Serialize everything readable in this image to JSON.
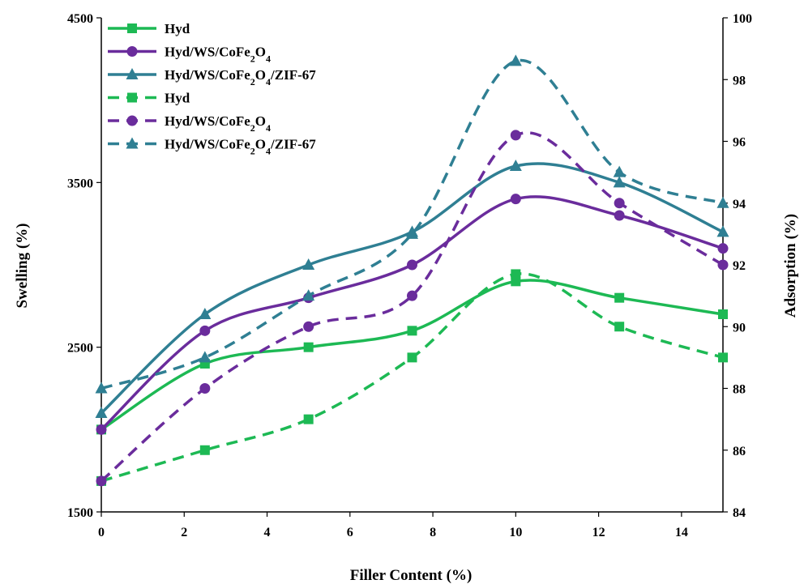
{
  "chart_data": {
    "type": "line",
    "x": [
      0,
      2.5,
      5,
      7.5,
      10,
      12.5,
      15
    ],
    "xlabel": "Filler Content (%)",
    "ylabel": "Swelling (%)",
    "y2label": "Adsorption (%)",
    "xlim": [
      0,
      15
    ],
    "ylim": [
      1500,
      4500
    ],
    "y2lim": [
      84,
      100
    ],
    "xticks": [
      "0",
      "2",
      "4",
      "6",
      "8",
      "10",
      "12",
      "14"
    ],
    "yticks": [
      "1500",
      "2500",
      "3500",
      "4500"
    ],
    "y2ticks": [
      "84",
      "86",
      "88",
      "90",
      "92",
      "94",
      "96",
      "98",
      "100"
    ],
    "grid": false,
    "legend_position": "top-left",
    "series": [
      {
        "name": "Hyd",
        "axis": "left",
        "style": "solid",
        "marker": "square",
        "color": "#1db954",
        "values": [
          2000,
          2400,
          2500,
          2600,
          2900,
          2800,
          2700
        ]
      },
      {
        "name": "Hyd/WS/CoFe2O4",
        "axis": "left",
        "style": "solid",
        "marker": "circle",
        "color": "#6a2c9c",
        "values": [
          2000,
          2600,
          2800,
          3000,
          3400,
          3300,
          3100
        ]
      },
      {
        "name": "Hyd/WS/CoFe2O4/ZIF-67",
        "axis": "left",
        "style": "solid",
        "marker": "triangle",
        "color": "#2f7f93",
        "values": [
          2100,
          2700,
          3000,
          3200,
          3600,
          3500,
          3200
        ]
      },
      {
        "name": "Hyd",
        "axis": "right",
        "style": "dashed",
        "marker": "square",
        "color": "#1db954",
        "values": [
          85,
          86,
          87,
          89,
          91.7,
          90,
          89
        ]
      },
      {
        "name": "Hyd/WS/CoFe2O4",
        "axis": "right",
        "style": "dashed",
        "marker": "circle",
        "color": "#6a2c9c",
        "values": [
          85,
          88,
          90,
          91,
          96.2,
          94,
          92
        ]
      },
      {
        "name": "Hyd/WS/CoFe2O4/ZIF-67",
        "axis": "right",
        "style": "dashed",
        "marker": "triangle",
        "color": "#2f7f93",
        "values": [
          88,
          89,
          91,
          93,
          98.6,
          95,
          94
        ]
      }
    ]
  }
}
